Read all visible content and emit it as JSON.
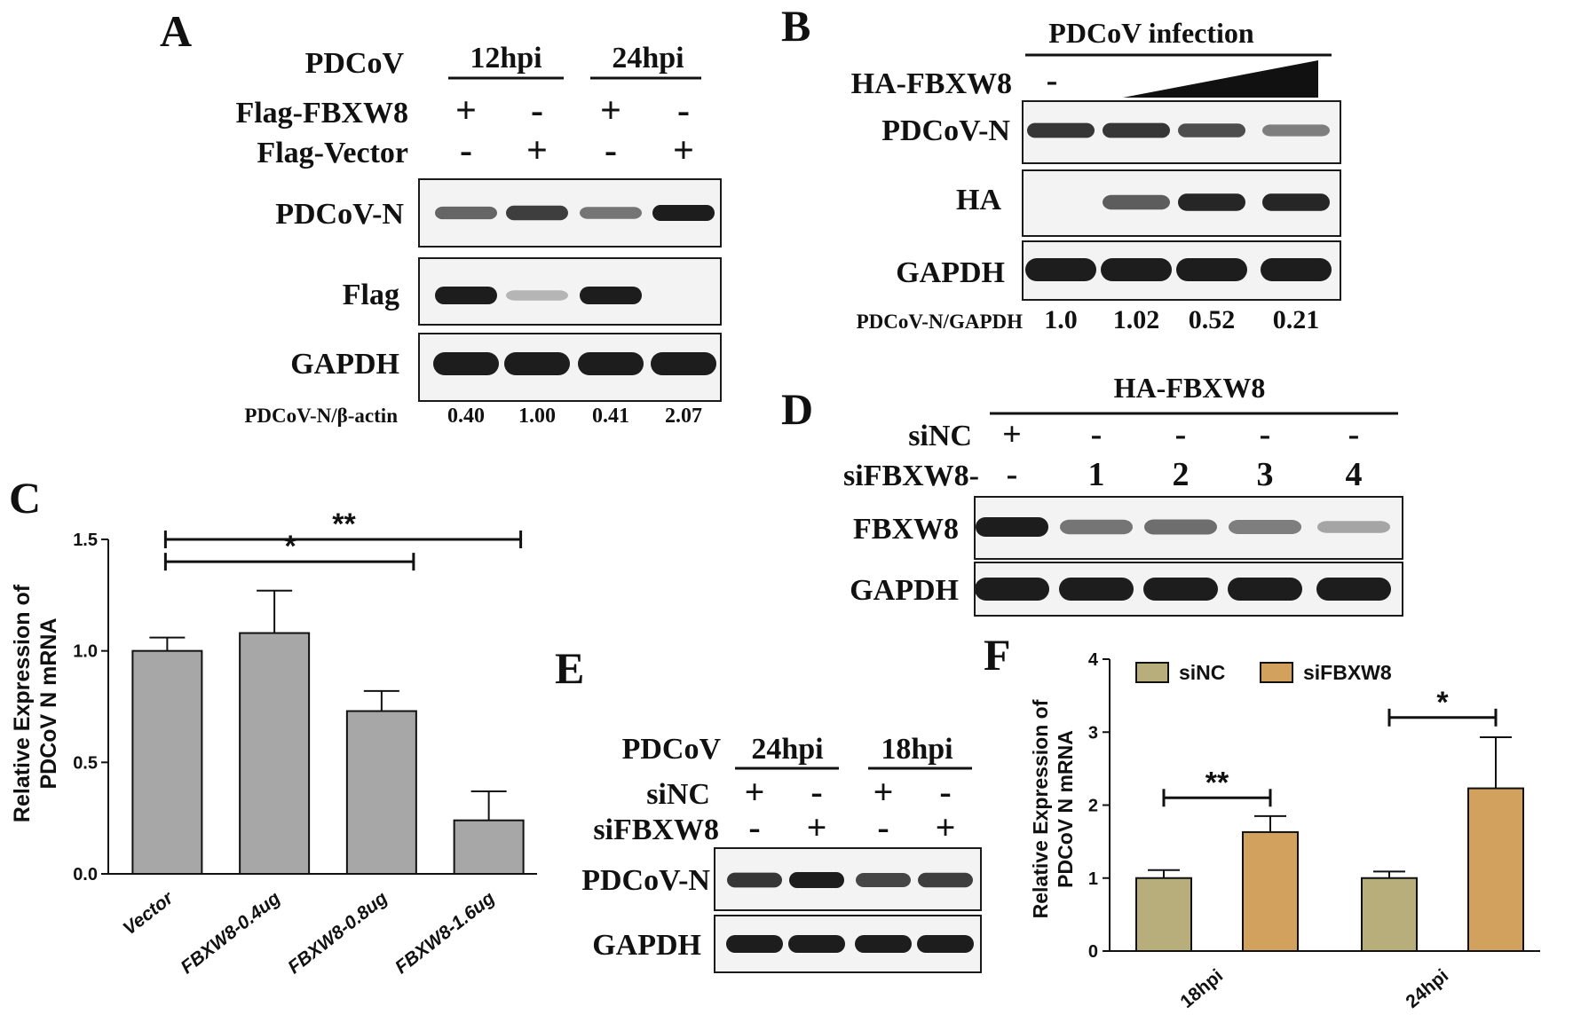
{
  "panels": {
    "A": {
      "letter": "A",
      "virus_label": "PDCoV",
      "timepoints": [
        "12hpi",
        "24hpi"
      ],
      "rows": [
        {
          "label": "Flag-FBXW8",
          "signs": [
            "+",
            "-",
            "+",
            "-"
          ]
        },
        {
          "label": "Flag-Vector",
          "signs": [
            "-",
            "+",
            "-",
            "+"
          ]
        }
      ],
      "blots": [
        {
          "label": "PDCoV-N",
          "intensity": [
            0.55,
            0.8,
            0.45,
            1.0
          ]
        },
        {
          "label": "Flag",
          "intensity": [
            1.0,
            0.05,
            1.0,
            0.0
          ]
        },
        {
          "label": "GAPDH",
          "intensity": [
            1.0,
            1.0,
            1.0,
            1.0
          ]
        }
      ],
      "ratio_label": "PDCoV-N/β-actin",
      "ratios": [
        "0.40",
        "1.00",
        "0.41",
        "2.07"
      ]
    },
    "B": {
      "letter": "B",
      "infection_label": "PDCoV infection",
      "row_label": "HA-FBXW8",
      "first_sign": "-",
      "blots": [
        {
          "label": "PDCoV-N",
          "intensity": [
            0.85,
            0.85,
            0.7,
            0.4
          ]
        },
        {
          "label": "HA",
          "intensity": [
            0.0,
            0.6,
            0.95,
            0.95
          ]
        },
        {
          "label": "GAPDH",
          "intensity": [
            1.0,
            1.0,
            1.0,
            1.0
          ]
        }
      ],
      "ratio_label": "PDCoV-N/GAPDH",
      "ratios": [
        "1.0",
        "1.02",
        "0.52",
        "0.21"
      ]
    },
    "C": {
      "letter": "C",
      "sig1": "*",
      "sig2": "**"
    },
    "D": {
      "letter": "D",
      "top_label": "HA-FBXW8",
      "rows": [
        {
          "label": "siNC",
          "signs": [
            "+",
            "-",
            "-",
            "-",
            "-"
          ]
        },
        {
          "label": "siFBXW8-",
          "signs": [
            "-",
            "1",
            "2",
            "3",
            "4"
          ]
        }
      ],
      "blots": [
        {
          "label": "FBXW8",
          "intensity": [
            1.0,
            0.45,
            0.5,
            0.4,
            0.15
          ]
        },
        {
          "label": "GAPDH",
          "intensity": [
            1.0,
            1.0,
            1.0,
            1.0,
            1.0
          ]
        }
      ]
    },
    "E": {
      "letter": "E",
      "virus_label": "PDCoV",
      "timepoints": [
        "24hpi",
        "18hpi"
      ],
      "rows": [
        {
          "label": "siNC",
          "signs": [
            "+",
            "-",
            "+",
            "-"
          ]
        },
        {
          "label": "siFBXW8",
          "signs": [
            "-",
            "+",
            "-",
            "+"
          ]
        }
      ],
      "blots": [
        {
          "label": "PDCoV-N",
          "intensity": [
            0.85,
            1.0,
            0.75,
            0.8
          ]
        },
        {
          "label": "GAPDH",
          "intensity": [
            1.0,
            1.0,
            1.0,
            1.0
          ]
        }
      ]
    },
    "F": {
      "letter": "F",
      "sig1": "**",
      "sig2": "*"
    }
  },
  "chart_data": [
    {
      "type": "bar",
      "panel": "C",
      "categories": [
        "Vector",
        "FBXW8-0.4ug",
        "FBXW8-0.8ug",
        "FBXW8-1.6ug"
      ],
      "values": [
        1.0,
        1.08,
        0.73,
        0.24
      ],
      "errors": [
        0.06,
        0.19,
        0.09,
        0.13
      ],
      "ylabel": "Relative Expression of PDCoV N mRNA",
      "ylabel_lines": [
        "Relative Expression of",
        "PDCoV N mRNA"
      ],
      "ylim": [
        0,
        1.5
      ],
      "yticks": [
        "0.0",
        "0.5",
        "1.0",
        "1.5"
      ],
      "bar_color": "#a7a7a7",
      "significance": [
        {
          "from": 0,
          "to": 2,
          "label": "*"
        },
        {
          "from": 0,
          "to": 3,
          "label": "**"
        }
      ]
    },
    {
      "type": "bar",
      "panel": "F",
      "categories": [
        "18hpi",
        "24hpi"
      ],
      "series": [
        {
          "name": "siNC",
          "values": [
            1.0,
            1.0
          ],
          "errors": [
            0.11,
            0.09
          ],
          "color": "#b7ae7c"
        },
        {
          "name": "siFBXW8",
          "values": [
            1.63,
            2.23
          ],
          "errors": [
            0.22,
            0.7
          ],
          "color": "#d3a15e"
        }
      ],
      "ylabel": "Relative Expression of PDCoV N mRNA",
      "ylabel_lines": [
        "Relative Expression of",
        "PDCoV N mRNA"
      ],
      "ylim": [
        0,
        4
      ],
      "yticks": [
        "0",
        "1",
        "2",
        "3",
        "4"
      ],
      "legend_position": "top",
      "significance": [
        {
          "group": 0,
          "label": "**"
        },
        {
          "group": 1,
          "label": "*"
        }
      ]
    }
  ]
}
